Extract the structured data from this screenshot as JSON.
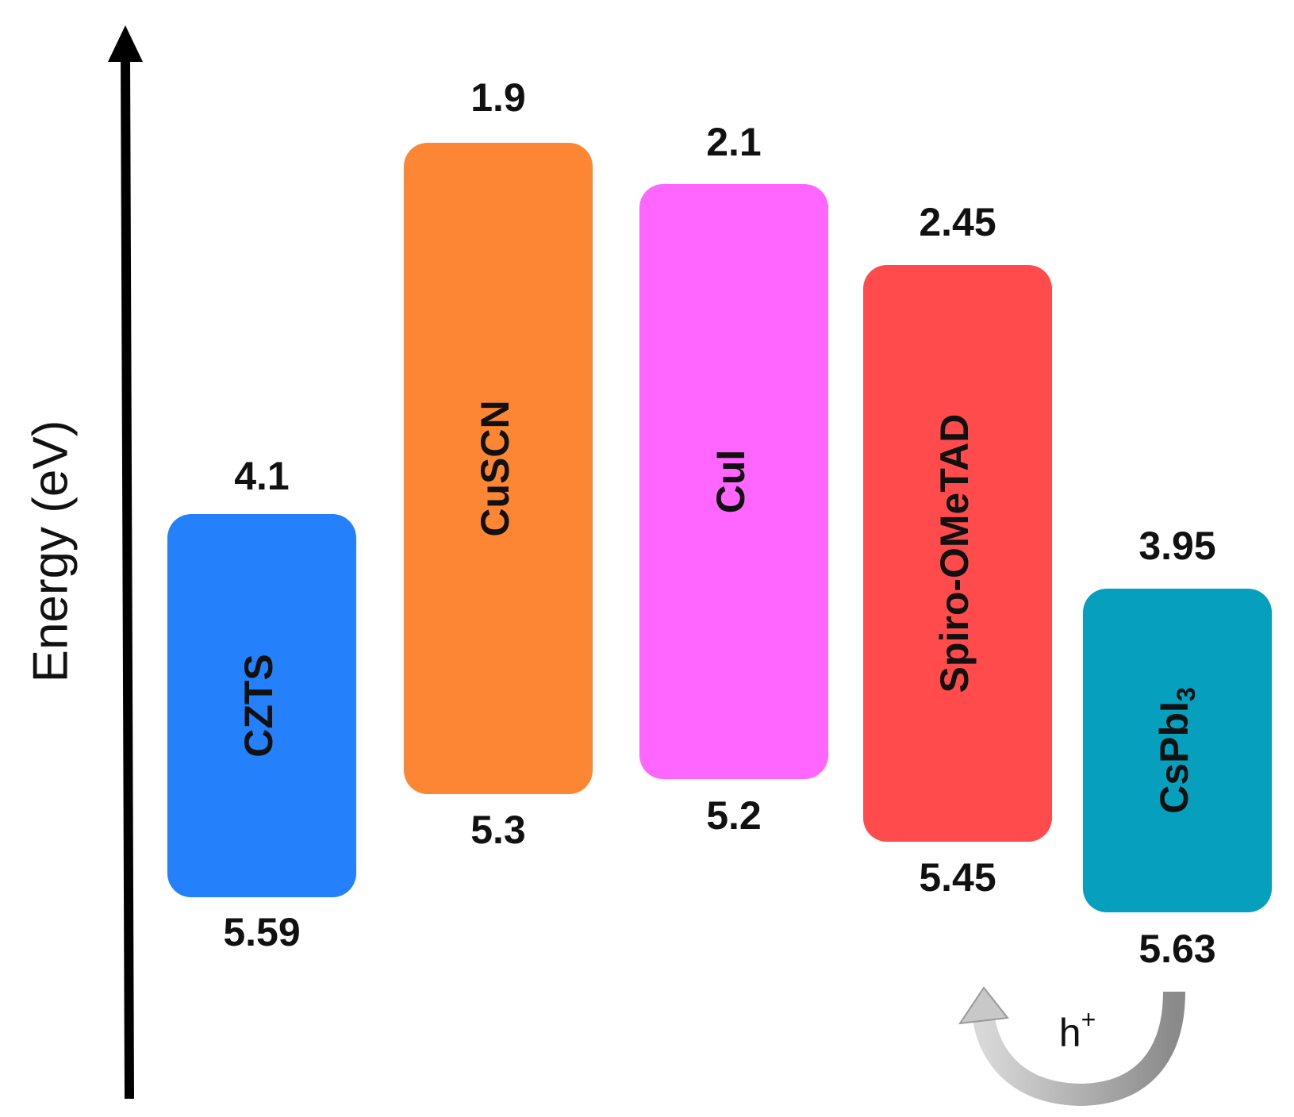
{
  "axis_label": "Energy (eV)",
  "materials": [
    {
      "name": "CZTS",
      "top": "4.1",
      "bottom": "5.59",
      "color": "#2481fb"
    },
    {
      "name": "CuSCN",
      "top": "1.9",
      "bottom": "5.3",
      "color": "#fd8635"
    },
    {
      "name": "CuI",
      "top": "2.1",
      "bottom": "5.2",
      "color": "#ff66ff"
    },
    {
      "name": "Spiro-OMeTAD",
      "top": "2.45",
      "bottom": "5.45",
      "color": "#ff4b4b"
    },
    {
      "name": "CsPbI",
      "subscript": "3",
      "top": "3.95",
      "bottom": "5.63",
      "color": "#069fbd"
    }
  ],
  "carrier": {
    "text": "h",
    "superscript": "+"
  }
}
